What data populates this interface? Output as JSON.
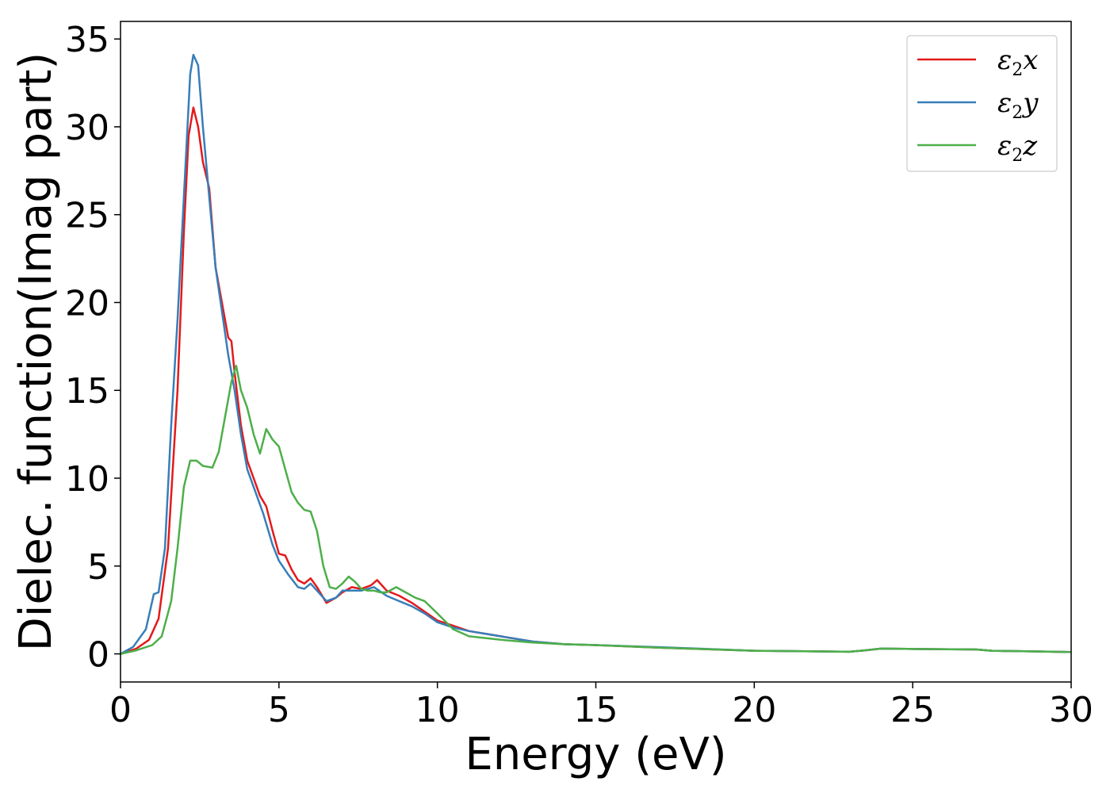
{
  "chart_data": {
    "type": "line",
    "title": "",
    "xlabel": "Energy (eV)",
    "ylabel": "Dielec. function(Imag part)",
    "xlim": [
      0,
      30
    ],
    "ylim": [
      -1.6,
      36
    ],
    "xticks": [
      0,
      5,
      10,
      15,
      20,
      25,
      30
    ],
    "yticks": [
      0,
      5,
      10,
      15,
      20,
      25,
      30,
      35
    ],
    "grid": false,
    "legend_position": "top-right",
    "series": [
      {
        "name": "ε2x",
        "legend_base": "ε",
        "legend_sub": "2",
        "legend_var": "x",
        "color": "#e41a1c",
        "points": [
          [
            0,
            0
          ],
          [
            0.5,
            0.3
          ],
          [
            0.9,
            0.8
          ],
          [
            1.2,
            2.0
          ],
          [
            1.5,
            6.0
          ],
          [
            1.8,
            15.0
          ],
          [
            2.0,
            24.0
          ],
          [
            2.15,
            29.5
          ],
          [
            2.3,
            31.1
          ],
          [
            2.45,
            30.0
          ],
          [
            2.6,
            28.0
          ],
          [
            2.8,
            26.5
          ],
          [
            3.0,
            22.0
          ],
          [
            3.2,
            20.0
          ],
          [
            3.4,
            18.0
          ],
          [
            3.5,
            17.8
          ],
          [
            3.6,
            16.0
          ],
          [
            3.8,
            13.0
          ],
          [
            4.0,
            11.0
          ],
          [
            4.2,
            10.0
          ],
          [
            4.4,
            9.0
          ],
          [
            4.6,
            8.4
          ],
          [
            4.8,
            7.0
          ],
          [
            5.0,
            5.7
          ],
          [
            5.2,
            5.6
          ],
          [
            5.4,
            4.8
          ],
          [
            5.6,
            4.2
          ],
          [
            5.8,
            4.0
          ],
          [
            6.0,
            4.3
          ],
          [
            6.2,
            3.8
          ],
          [
            6.5,
            2.9
          ],
          [
            6.8,
            3.2
          ],
          [
            7.0,
            3.5
          ],
          [
            7.3,
            3.8
          ],
          [
            7.6,
            3.7
          ],
          [
            7.9,
            3.9
          ],
          [
            8.1,
            4.2
          ],
          [
            8.4,
            3.6
          ],
          [
            8.8,
            3.3
          ],
          [
            9.2,
            2.9
          ],
          [
            9.6,
            2.4
          ],
          [
            10.0,
            1.9
          ],
          [
            10.5,
            1.6
          ],
          [
            11.0,
            1.3
          ],
          [
            12.0,
            1.0
          ],
          [
            13.0,
            0.7
          ],
          [
            14.0,
            0.55
          ],
          [
            15.0,
            0.5
          ],
          [
            17.0,
            0.35
          ],
          [
            20.0,
            0.18
          ],
          [
            23.0,
            0.12
          ],
          [
            23.5,
            0.2
          ],
          [
            24.0,
            0.3
          ],
          [
            25.0,
            0.28
          ],
          [
            27.0,
            0.25
          ],
          [
            27.5,
            0.18
          ],
          [
            30.0,
            0.1
          ]
        ]
      },
      {
        "name": "ε2y",
        "legend_base": "ε",
        "legend_sub": "2",
        "legend_var": "y",
        "color": "#377eb8",
        "points": [
          [
            0,
            0
          ],
          [
            0.4,
            0.4
          ],
          [
            0.8,
            1.4
          ],
          [
            1.05,
            3.4
          ],
          [
            1.2,
            3.5
          ],
          [
            1.4,
            6.0
          ],
          [
            1.6,
            13.0
          ],
          [
            1.8,
            19.0
          ],
          [
            2.0,
            26.0
          ],
          [
            2.2,
            33.0
          ],
          [
            2.3,
            34.1
          ],
          [
            2.45,
            33.5
          ],
          [
            2.6,
            30.0
          ],
          [
            2.8,
            26.0
          ],
          [
            3.0,
            22.0
          ],
          [
            3.2,
            19.5
          ],
          [
            3.4,
            17.0
          ],
          [
            3.6,
            15.0
          ],
          [
            3.8,
            12.5
          ],
          [
            4.0,
            10.5
          ],
          [
            4.2,
            9.5
          ],
          [
            4.5,
            8.0
          ],
          [
            4.8,
            6.2
          ],
          [
            5.0,
            5.3
          ],
          [
            5.3,
            4.5
          ],
          [
            5.6,
            3.8
          ],
          [
            5.8,
            3.7
          ],
          [
            6.0,
            4.0
          ],
          [
            6.2,
            3.6
          ],
          [
            6.5,
            3.0
          ],
          [
            6.8,
            3.2
          ],
          [
            7.0,
            3.6
          ],
          [
            7.3,
            3.6
          ],
          [
            7.6,
            3.6
          ],
          [
            8.0,
            3.8
          ],
          [
            8.4,
            3.3
          ],
          [
            8.8,
            3.0
          ],
          [
            9.2,
            2.7
          ],
          [
            9.6,
            2.3
          ],
          [
            10.0,
            1.8
          ],
          [
            10.5,
            1.5
          ],
          [
            11.0,
            1.3
          ],
          [
            12.0,
            1.0
          ],
          [
            13.0,
            0.7
          ],
          [
            14.0,
            0.55
          ],
          [
            15.0,
            0.5
          ],
          [
            17.0,
            0.38
          ],
          [
            20.0,
            0.18
          ],
          [
            23.0,
            0.12
          ],
          [
            23.5,
            0.2
          ],
          [
            24.0,
            0.3
          ],
          [
            25.0,
            0.28
          ],
          [
            27.0,
            0.25
          ],
          [
            27.5,
            0.18
          ],
          [
            30.0,
            0.1
          ]
        ]
      },
      {
        "name": "ε2z",
        "legend_base": "ε",
        "legend_sub": "2",
        "legend_var": "z",
        "color": "#4daf4a",
        "points": [
          [
            0,
            0
          ],
          [
            0.5,
            0.2
          ],
          [
            1.0,
            0.5
          ],
          [
            1.3,
            1.0
          ],
          [
            1.6,
            3.0
          ],
          [
            1.8,
            6.0
          ],
          [
            2.0,
            9.5
          ],
          [
            2.2,
            11.0
          ],
          [
            2.4,
            11.0
          ],
          [
            2.6,
            10.7
          ],
          [
            2.9,
            10.6
          ],
          [
            3.1,
            11.5
          ],
          [
            3.3,
            13.5
          ],
          [
            3.5,
            15.5
          ],
          [
            3.65,
            16.4
          ],
          [
            3.8,
            15.0
          ],
          [
            4.0,
            14.0
          ],
          [
            4.2,
            12.5
          ],
          [
            4.4,
            11.4
          ],
          [
            4.6,
            12.8
          ],
          [
            4.8,
            12.2
          ],
          [
            5.0,
            11.8
          ],
          [
            5.2,
            10.5
          ],
          [
            5.4,
            9.2
          ],
          [
            5.6,
            8.6
          ],
          [
            5.8,
            8.2
          ],
          [
            6.0,
            8.1
          ],
          [
            6.2,
            7.0
          ],
          [
            6.4,
            5.0
          ],
          [
            6.6,
            3.8
          ],
          [
            6.8,
            3.7
          ],
          [
            7.0,
            4.0
          ],
          [
            7.2,
            4.4
          ],
          [
            7.4,
            4.1
          ],
          [
            7.6,
            3.7
          ],
          [
            7.8,
            3.6
          ],
          [
            8.0,
            3.6
          ],
          [
            8.2,
            3.5
          ],
          [
            8.4,
            3.5
          ],
          [
            8.7,
            3.8
          ],
          [
            9.0,
            3.5
          ],
          [
            9.3,
            3.2
          ],
          [
            9.6,
            3.0
          ],
          [
            10.0,
            2.3
          ],
          [
            10.5,
            1.4
          ],
          [
            11.0,
            1.0
          ],
          [
            12.0,
            0.8
          ],
          [
            13.0,
            0.65
          ],
          [
            14.0,
            0.55
          ],
          [
            15.0,
            0.5
          ],
          [
            17.0,
            0.35
          ],
          [
            20.0,
            0.18
          ],
          [
            23.0,
            0.12
          ],
          [
            23.5,
            0.2
          ],
          [
            24.0,
            0.3
          ],
          [
            25.0,
            0.28
          ],
          [
            27.0,
            0.25
          ],
          [
            27.5,
            0.18
          ],
          [
            30.0,
            0.1
          ]
        ]
      }
    ]
  }
}
